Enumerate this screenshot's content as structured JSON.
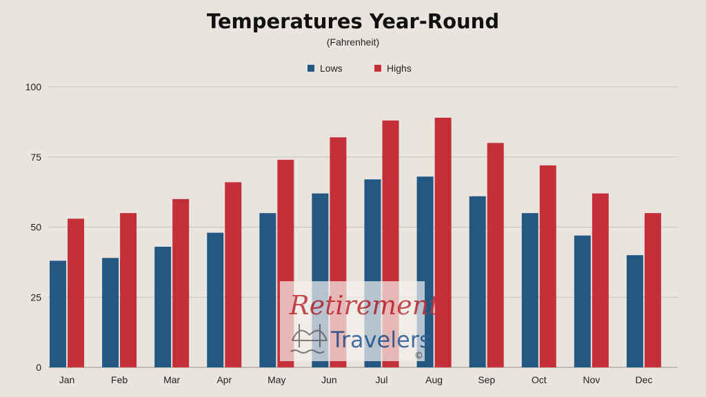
{
  "chart_data": {
    "type": "bar",
    "title": "Temperatures Year-Round",
    "subtitle": "(Fahrenheit)",
    "categories": [
      "Jan",
      "Feb",
      "Mar",
      "Apr",
      "May",
      "Jun",
      "Jul",
      "Aug",
      "Sep",
      "Oct",
      "Nov",
      "Dec"
    ],
    "series": [
      {
        "name": "Lows",
        "color": "#255783",
        "values": [
          38,
          39,
          43,
          48,
          55,
          62,
          67,
          68,
          61,
          55,
          47,
          40
        ]
      },
      {
        "name": "Highs",
        "color": "#c4303a",
        "values": [
          53,
          55,
          60,
          66,
          74,
          82,
          88,
          89,
          80,
          72,
          62,
          55
        ]
      }
    ],
    "ylim": [
      0,
      100
    ],
    "yticks": [
      0,
      25,
      50,
      75,
      100
    ],
    "grid": true,
    "legend": "top-center"
  },
  "watermark": {
    "line1": "Retirement",
    "line2": "Travelers",
    "symbol": "©",
    "icon": "bridge-icon"
  }
}
